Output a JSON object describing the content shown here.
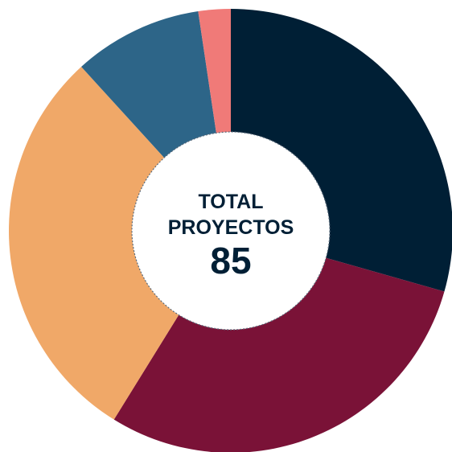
{
  "chart_data": {
    "type": "donut",
    "values": [
      25,
      25,
      25,
      8,
      2
    ],
    "colors": [
      "#001f35",
      "#7a1237",
      "#f0a868",
      "#2d6588",
      "#f07a78"
    ],
    "center_label": "TOTAL PROYECTOS",
    "total": 85
  }
}
